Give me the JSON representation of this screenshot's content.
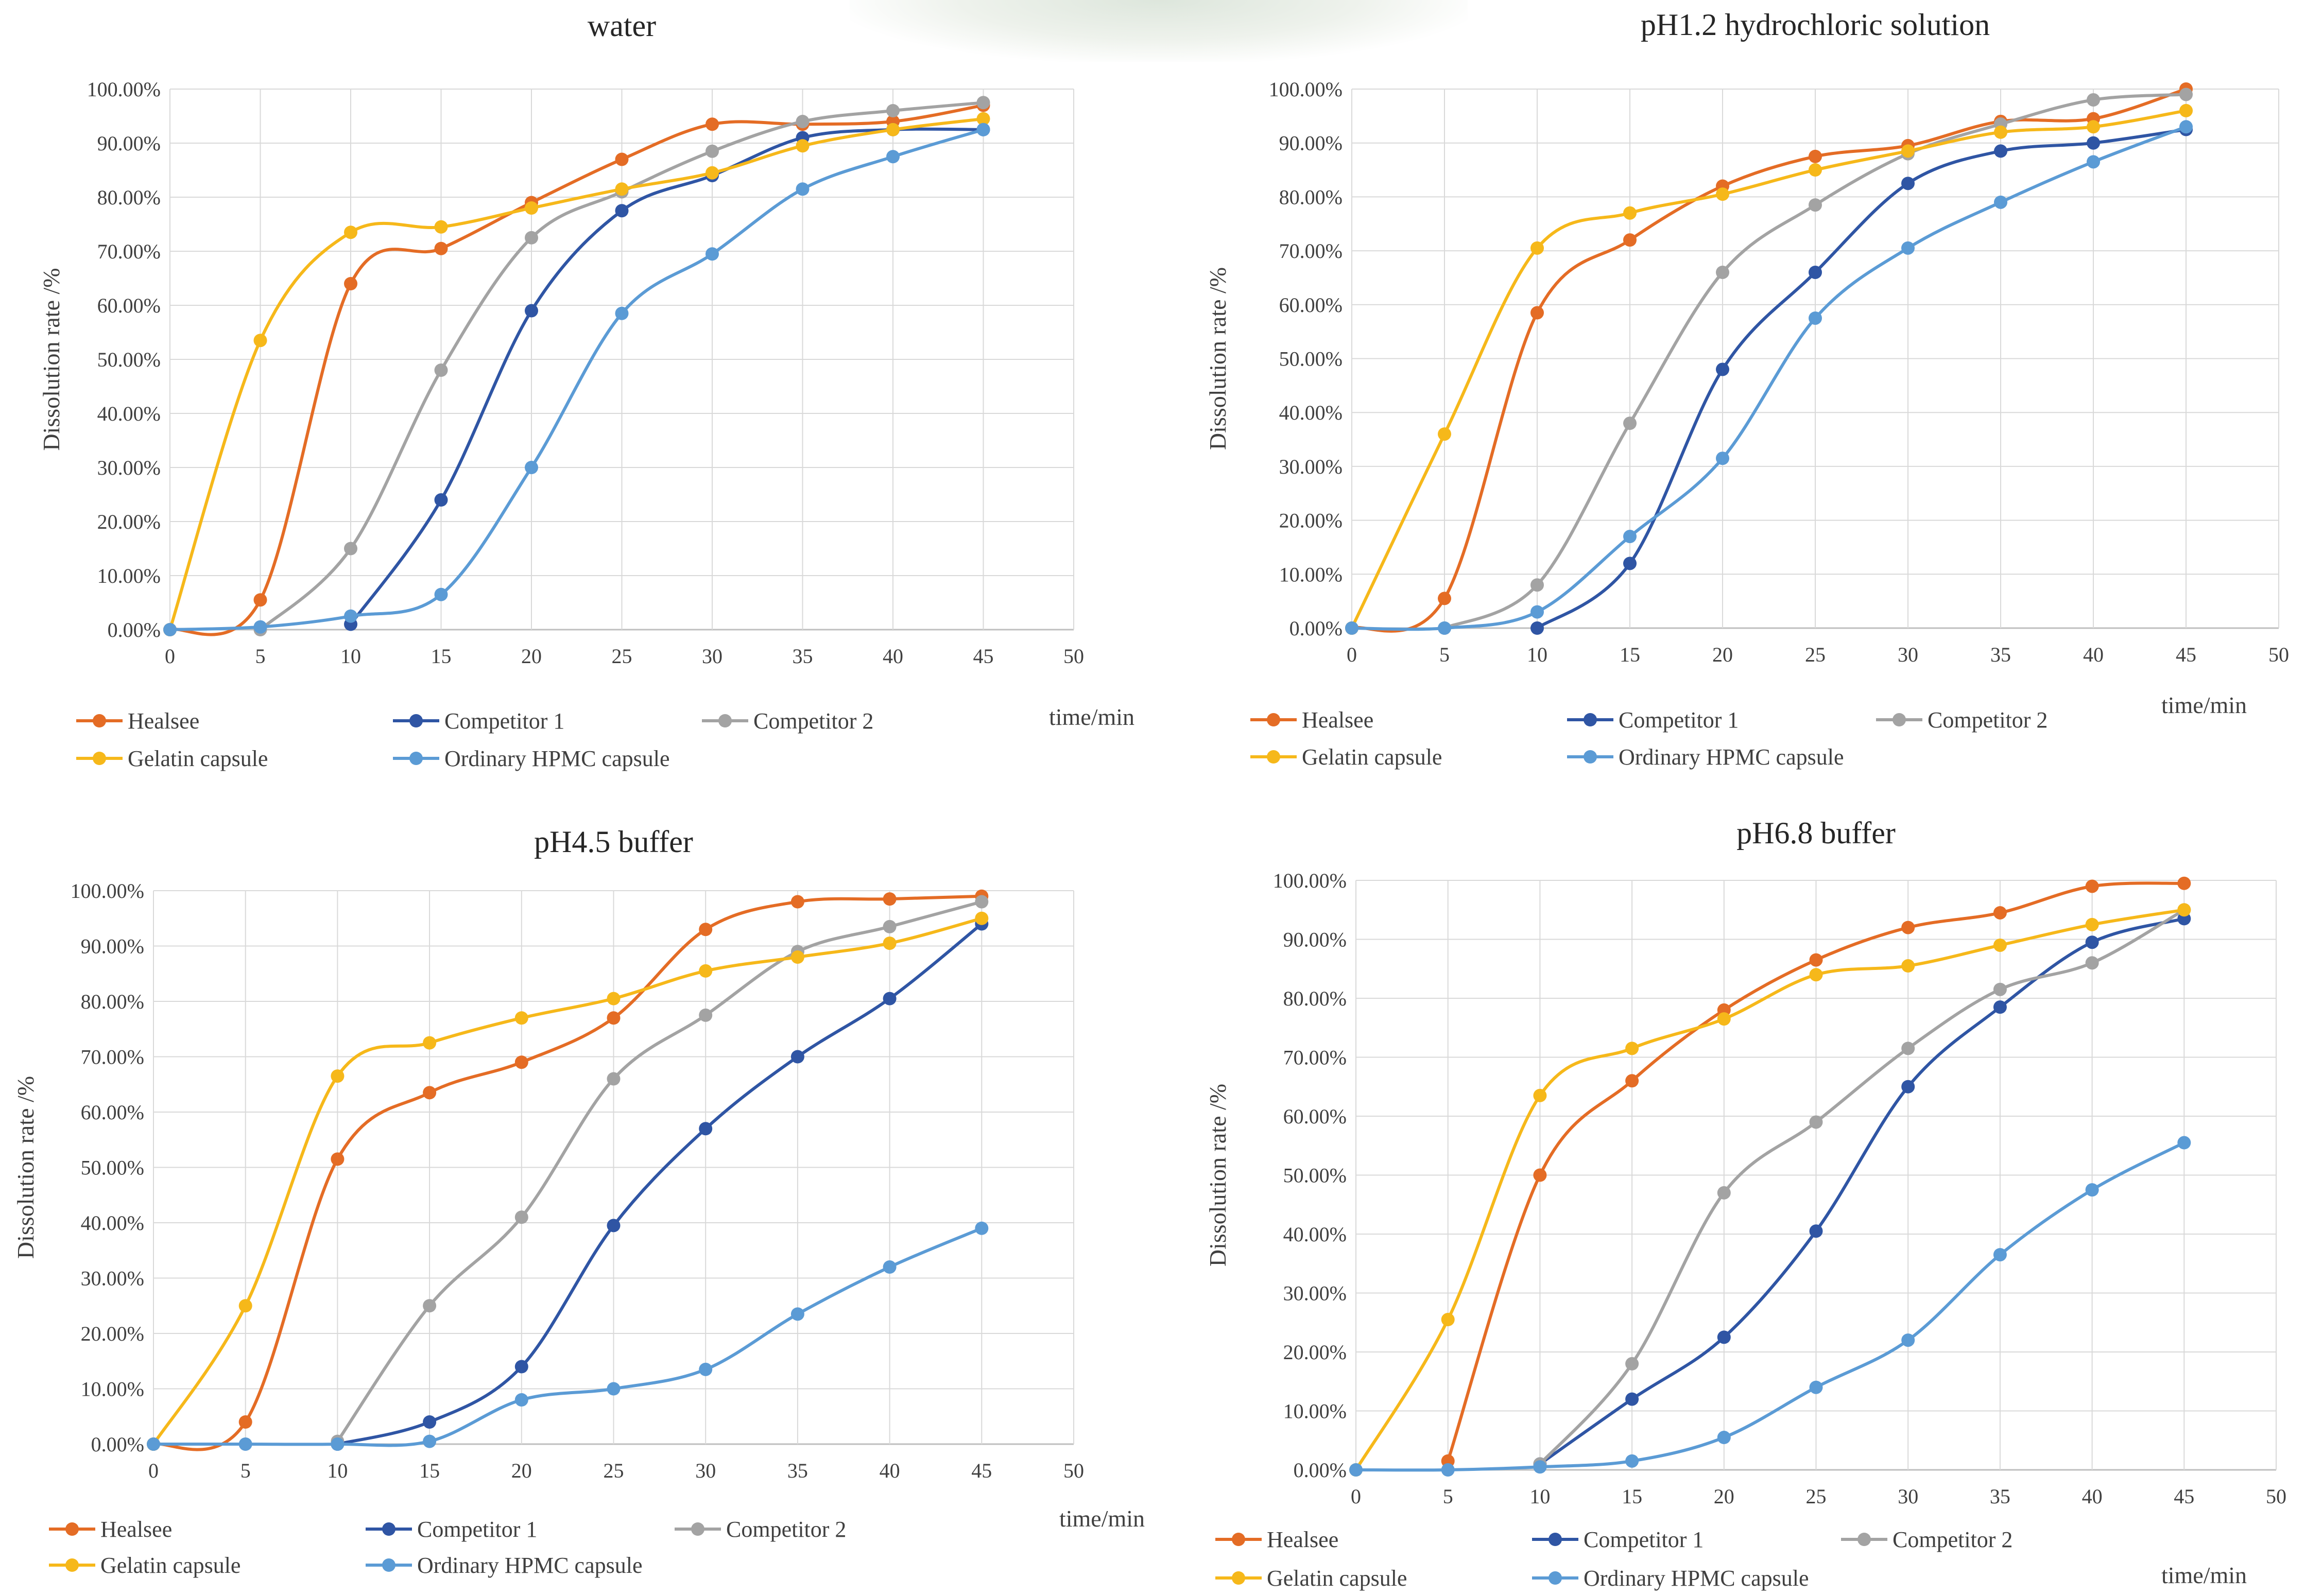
{
  "colors": {
    "Healsee": "#E46C25",
    "Competitor 1": "#2F55A4",
    "Competitor 2": "#A3A3A3",
    "Gelatin capsule": "#F6B81A",
    "Ordinary HPMC capsule": "#5B9BD5",
    "grid": "#d9d9d9",
    "axis": "#bfbfbf",
    "text": "#404040"
  },
  "legend_order": [
    "Healsee",
    "Competitor 1",
    "Competitor 2",
    "Gelatin capsule",
    "Ordinary HPMC capsule"
  ],
  "chart_data": [
    {
      "type": "line",
      "title": "water",
      "ylabel": "Dissolution rate /%",
      "xlabel": "time/min",
      "x_ticks": [
        "0",
        "5",
        "10",
        "15",
        "20",
        "25",
        "30",
        "35",
        "40",
        "45",
        "50"
      ],
      "y_ticks": [
        "0.00%",
        "10.00%",
        "20.00%",
        "30.00%",
        "40.00%",
        "50.00%",
        "60.00%",
        "70.00%",
        "80.00%",
        "90.00%",
        "100.00%"
      ],
      "xlim": [
        0,
        50
      ],
      "ylim": [
        0,
        100
      ],
      "grid": true,
      "legend": "bottom",
      "series": [
        {
          "name": "Healsee",
          "x": [
            0,
            5,
            10,
            15,
            20,
            25,
            30,
            35,
            40,
            45
          ],
          "values": [
            0,
            5.5,
            64,
            70.5,
            79,
            87,
            93.5,
            93.5,
            94,
            97
          ]
        },
        {
          "name": "Competitor 1",
          "x": [
            10,
            15,
            20,
            25,
            30,
            35,
            40,
            45
          ],
          "values": [
            1,
            24,
            59,
            77.5,
            84,
            91,
            92.5,
            92.5
          ]
        },
        {
          "name": "Competitor 2",
          "x": [
            5,
            10,
            15,
            20,
            25,
            30,
            35,
            40,
            45
          ],
          "values": [
            0,
            15,
            48,
            72.5,
            81,
            88.5,
            94,
            96,
            97.5
          ]
        },
        {
          "name": "Gelatin capsule",
          "x": [
            0,
            5,
            10,
            15,
            20,
            25,
            30,
            35,
            40,
            45
          ],
          "values": [
            0,
            53.5,
            73.5,
            74.5,
            78,
            81.5,
            84.5,
            89.5,
            92.5,
            94.5
          ]
        },
        {
          "name": "Ordinary HPMC capsule",
          "x": [
            0,
            5,
            10,
            15,
            20,
            25,
            30,
            35,
            40,
            45
          ],
          "values": [
            0,
            0.5,
            2.5,
            6.5,
            30,
            58.5,
            69.5,
            81.5,
            87.5,
            92.5
          ]
        }
      ]
    },
    {
      "type": "line",
      "title": "pH1.2 hydrochloric solution",
      "ylabel": "Dissolution rate /%",
      "xlabel": "time/min",
      "x_ticks": [
        "0",
        "5",
        "10",
        "15",
        "20",
        "25",
        "30",
        "35",
        "40",
        "45",
        "50"
      ],
      "y_ticks": [
        "0.00%",
        "10.00%",
        "20.00%",
        "30.00%",
        "40.00%",
        "50.00%",
        "60.00%",
        "70.00%",
        "80.00%",
        "90.00%",
        "100.00%"
      ],
      "xlim": [
        0,
        50
      ],
      "ylim": [
        0,
        100
      ],
      "grid": true,
      "legend": "bottom",
      "series": [
        {
          "name": "Healsee",
          "x": [
            0,
            5,
            10,
            15,
            20,
            25,
            30,
            35,
            40,
            45
          ],
          "values": [
            0,
            5.5,
            58.5,
            72,
            82,
            87.5,
            89.5,
            94,
            94.5,
            100
          ]
        },
        {
          "name": "Competitor 1",
          "x": [
            10,
            15,
            20,
            25,
            30,
            35,
            40,
            45
          ],
          "values": [
            0,
            12,
            48,
            66,
            82.5,
            88.5,
            90,
            92.5
          ]
        },
        {
          "name": "Competitor 2",
          "x": [
            5,
            10,
            15,
            20,
            25,
            30,
            35,
            40,
            45
          ],
          "values": [
            0,
            8,
            38,
            66,
            78.5,
            88,
            93.5,
            98,
            99
          ]
        },
        {
          "name": "Gelatin capsule",
          "x": [
            0,
            5,
            10,
            15,
            20,
            25,
            30,
            35,
            40,
            45
          ],
          "values": [
            0,
            36,
            70.5,
            77,
            80.5,
            85,
            88.5,
            92,
            93,
            96
          ]
        },
        {
          "name": "Ordinary HPMC capsule",
          "x": [
            0,
            5,
            10,
            15,
            20,
            25,
            30,
            35,
            40,
            45
          ],
          "values": [
            0,
            0,
            3,
            17,
            31.5,
            57.5,
            70.5,
            79,
            86.5,
            93
          ]
        }
      ]
    },
    {
      "type": "line",
      "title": "pH4.5 buffer",
      "ylabel": "Dissolution rate /%",
      "xlabel": "time/min",
      "x_ticks": [
        "0",
        "5",
        "10",
        "15",
        "20",
        "25",
        "30",
        "35",
        "40",
        "45",
        "50"
      ],
      "y_ticks": [
        "0.00%",
        "10.00%",
        "20.00%",
        "30.00%",
        "40.00%",
        "50.00%",
        "60.00%",
        "70.00%",
        "80.00%",
        "90.00%",
        "100.00%"
      ],
      "xlim": [
        0,
        50
      ],
      "ylim": [
        0,
        100
      ],
      "grid": true,
      "legend": "bottom",
      "series": [
        {
          "name": "Healsee",
          "x": [
            0,
            5,
            10,
            15,
            20,
            25,
            30,
            35,
            40,
            45
          ],
          "values": [
            0,
            4,
            51.5,
            63.5,
            69,
            77,
            93,
            98,
            98.5,
            99
          ]
        },
        {
          "name": "Competitor 1",
          "x": [
            10,
            15,
            20,
            25,
            30,
            35,
            40,
            45
          ],
          "values": [
            0,
            4,
            14,
            39.5,
            57,
            70,
            80.5,
            94
          ]
        },
        {
          "name": "Competitor 2",
          "x": [
            10,
            15,
            20,
            25,
            30,
            35,
            40,
            45
          ],
          "values": [
            0.5,
            25,
            41,
            66,
            77.5,
            89,
            93.5,
            98
          ]
        },
        {
          "name": "Gelatin capsule",
          "x": [
            0,
            5,
            10,
            15,
            20,
            25,
            30,
            35,
            40,
            45
          ],
          "values": [
            0,
            25,
            66.5,
            72.5,
            77,
            80.5,
            85.5,
            88,
            90.5,
            95
          ]
        },
        {
          "name": "Ordinary HPMC capsule",
          "x": [
            0,
            5,
            10,
            15,
            20,
            25,
            30,
            35,
            40,
            45
          ],
          "values": [
            0,
            0,
            0,
            0.5,
            8,
            10,
            13.5,
            23.5,
            32,
            39
          ]
        }
      ]
    },
    {
      "type": "line",
      "title": "pH6.8 buffer",
      "ylabel": "Dissolution rate /%",
      "xlabel": "time/min",
      "x_ticks": [
        "0",
        "5",
        "10",
        "15",
        "20",
        "25",
        "30",
        "35",
        "40",
        "45",
        "50"
      ],
      "y_ticks": [
        "0.00%",
        "10.00%",
        "20.00%",
        "30.00%",
        "40.00%",
        "50.00%",
        "60.00%",
        "70.00%",
        "80.00%",
        "90.00%",
        "100.00%"
      ],
      "xlim": [
        0,
        50
      ],
      "ylim": [
        0,
        100
      ],
      "grid": true,
      "legend": "bottom",
      "series": [
        {
          "name": "Healsee",
          "x": [
            5,
            10,
            15,
            20,
            25,
            30,
            35,
            40,
            45
          ],
          "values": [
            1.5,
            50,
            66,
            78,
            86.5,
            92,
            94.5,
            99,
            99.5
          ]
        },
        {
          "name": "Competitor 1",
          "x": [
            10,
            15,
            20,
            25,
            30,
            35,
            40,
            45
          ],
          "values": [
            1,
            12,
            22.5,
            40.5,
            65,
            78.5,
            89.5,
            93.5
          ]
        },
        {
          "name": "Competitor 2",
          "x": [
            10,
            15,
            20,
            25,
            30,
            35,
            40,
            45
          ],
          "values": [
            1,
            18,
            47,
            59,
            71.5,
            81.5,
            86,
            95
          ]
        },
        {
          "name": "Gelatin capsule",
          "x": [
            0,
            5,
            10,
            15,
            20,
            25,
            30,
            35,
            40,
            45
          ],
          "values": [
            0,
            25.5,
            63.5,
            71.5,
            76.5,
            84,
            85.5,
            89,
            92.5,
            95
          ]
        },
        {
          "name": "Ordinary HPMC capsule",
          "x": [
            0,
            5,
            10,
            15,
            20,
            25,
            30,
            35,
            40,
            45
          ],
          "values": [
            0,
            0,
            0.5,
            1.5,
            5.5,
            14,
            22,
            36.5,
            47.5,
            55.5
          ]
        }
      ]
    }
  ]
}
